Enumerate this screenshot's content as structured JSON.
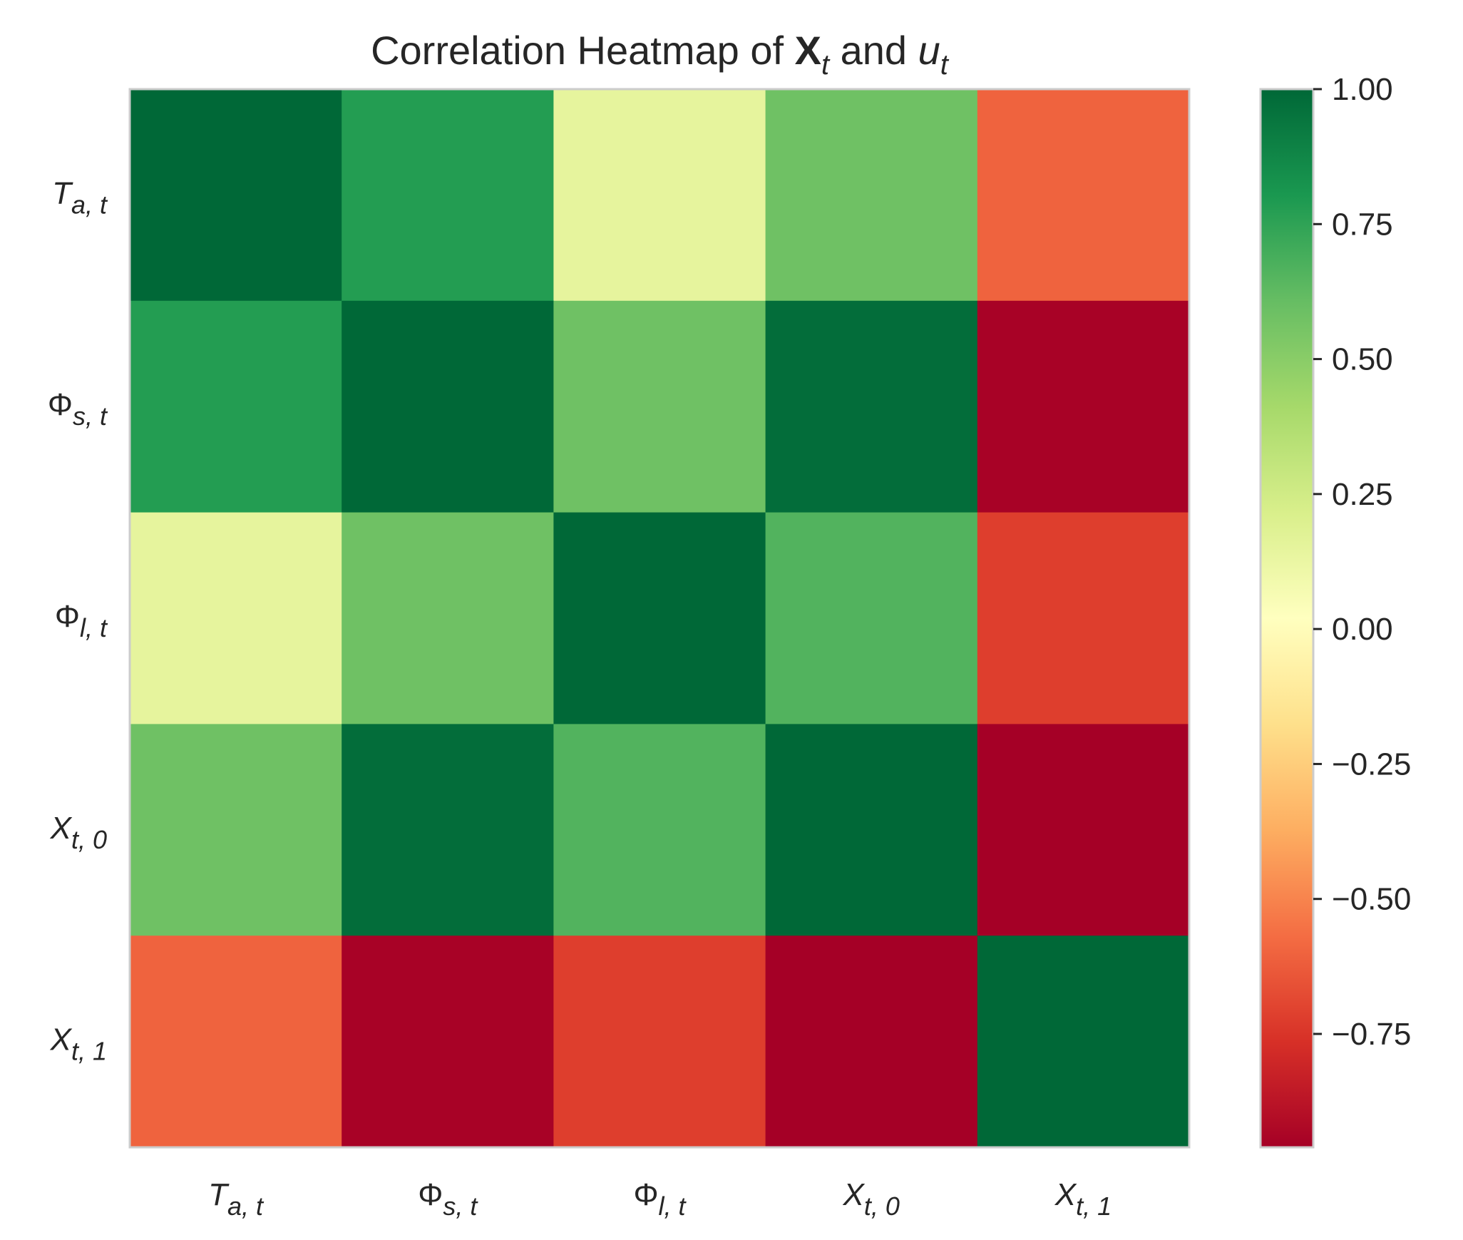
{
  "chart_data": {
    "type": "heatmap",
    "title": "Correlation Heatmap of 𝐗ₜ and uₜ",
    "title_parts": [
      {
        "text": "Correlation Heatmap of ",
        "style": "normal"
      },
      {
        "text": "X",
        "style": "bold",
        "sub": "t"
      },
      {
        "text": " and ",
        "style": "normal"
      },
      {
        "text": "u",
        "style": "italic",
        "sub": "t"
      }
    ],
    "xlabel": "",
    "ylabel": "",
    "row_labels": [
      {
        "base": "T",
        "base_italic": true,
        "sub": "a, t"
      },
      {
        "base": "Φ",
        "base_italic": false,
        "sub": "s, t"
      },
      {
        "base": "Φ",
        "base_italic": false,
        "sub": "l, t"
      },
      {
        "base": "X",
        "base_italic": true,
        "sub": "t, 0"
      },
      {
        "base": "X",
        "base_italic": true,
        "sub": "t, 1"
      }
    ],
    "col_labels": [
      {
        "base": "T",
        "base_italic": true,
        "sub": "a, t"
      },
      {
        "base": "Φ",
        "base_italic": false,
        "sub": "s, t"
      },
      {
        "base": "Φ",
        "base_italic": false,
        "sub": "l, t"
      },
      {
        "base": "X",
        "base_italic": true,
        "sub": "t, 0"
      },
      {
        "base": "X",
        "base_italic": true,
        "sub": "t, 1"
      }
    ],
    "values": [
      [
        1.0,
        0.78,
        0.15,
        0.58,
        -0.6
      ],
      [
        0.78,
        1.0,
        0.58,
        0.98,
        -0.95
      ],
      [
        0.15,
        0.58,
        1.0,
        0.66,
        -0.72
      ],
      [
        0.58,
        0.98,
        0.66,
        1.0,
        -0.96
      ],
      [
        -0.6,
        -0.95,
        -0.72,
        -0.96,
        1.0
      ]
    ],
    "colormap": "RdYlGn",
    "colorbar": {
      "vmin": -0.96,
      "vmax": 1.0,
      "ticks": [
        1.0,
        0.75,
        0.5,
        0.25,
        0.0,
        -0.25,
        -0.5,
        -0.75
      ],
      "tick_labels": [
        "1.00",
        "0.75",
        "0.50",
        "0.25",
        "0.00",
        "−0.25",
        "−0.50",
        "−0.75"
      ]
    },
    "grid": false
  }
}
